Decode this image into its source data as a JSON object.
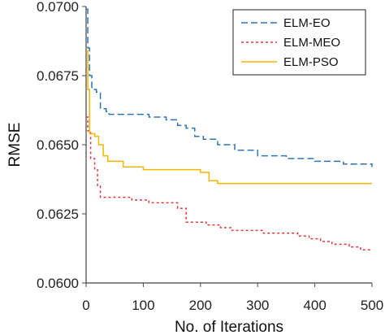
{
  "chart_data": {
    "type": "line",
    "xlabel": "No. of Iterations",
    "ylabel": "RMSE",
    "xlim": [
      0,
      500
    ],
    "ylim": [
      0.06,
      0.07
    ],
    "x_ticks": [
      "0",
      "100",
      "200",
      "300",
      "400",
      "500"
    ],
    "y_ticks": [
      "0.0600",
      "0.0625",
      "0.0650",
      "0.0675",
      "0.0700"
    ],
    "grid": false,
    "legend_position": "top-right",
    "series": [
      {
        "name": "ELM-EO",
        "color": "#2e75b6",
        "dash": "dashed",
        "points": [
          [
            0,
            0.0699
          ],
          [
            3,
            0.0685
          ],
          [
            6,
            0.0675
          ],
          [
            10,
            0.067
          ],
          [
            18,
            0.0669
          ],
          [
            25,
            0.0663
          ],
          [
            35,
            0.0662
          ],
          [
            40,
            0.0661
          ],
          [
            60,
            0.0661
          ],
          [
            100,
            0.0661
          ],
          [
            110,
            0.066
          ],
          [
            140,
            0.0659
          ],
          [
            160,
            0.0657
          ],
          [
            175,
            0.0656
          ],
          [
            190,
            0.0653
          ],
          [
            205,
            0.0652
          ],
          [
            230,
            0.065
          ],
          [
            260,
            0.0648
          ],
          [
            300,
            0.0646
          ],
          [
            350,
            0.0645
          ],
          [
            400,
            0.0644
          ],
          [
            450,
            0.0643
          ],
          [
            500,
            0.0642
          ]
        ]
      },
      {
        "name": "ELM-MEO",
        "color": "#e03a3e",
        "dash": "dotted",
        "points": [
          [
            0,
            0.066
          ],
          [
            3,
            0.0655
          ],
          [
            8,
            0.0645
          ],
          [
            15,
            0.0641
          ],
          [
            20,
            0.0635
          ],
          [
            25,
            0.0631
          ],
          [
            60,
            0.0631
          ],
          [
            80,
            0.063
          ],
          [
            100,
            0.063
          ],
          [
            110,
            0.0629
          ],
          [
            150,
            0.0629
          ],
          [
            160,
            0.0627
          ],
          [
            170,
            0.0627
          ],
          [
            175,
            0.0622
          ],
          [
            200,
            0.0622
          ],
          [
            210,
            0.0621
          ],
          [
            230,
            0.0621
          ],
          [
            235,
            0.062
          ],
          [
            250,
            0.062
          ],
          [
            255,
            0.0619
          ],
          [
            300,
            0.0619
          ],
          [
            310,
            0.0618
          ],
          [
            350,
            0.0618
          ],
          [
            370,
            0.0617
          ],
          [
            390,
            0.0616
          ],
          [
            410,
            0.0615
          ],
          [
            430,
            0.0614
          ],
          [
            460,
            0.0613
          ],
          [
            480,
            0.0612
          ],
          [
            500,
            0.0612
          ]
        ]
      },
      {
        "name": "ELM-PSO",
        "color": "#f2b800",
        "dash": "solid",
        "points": [
          [
            0,
            0.0684
          ],
          [
            3,
            0.067
          ],
          [
            6,
            0.0654
          ],
          [
            15,
            0.0653
          ],
          [
            22,
            0.065
          ],
          [
            30,
            0.0646
          ],
          [
            38,
            0.0644
          ],
          [
            60,
            0.0644
          ],
          [
            65,
            0.0642
          ],
          [
            100,
            0.0641
          ],
          [
            150,
            0.0641
          ],
          [
            200,
            0.064
          ],
          [
            215,
            0.0637
          ],
          [
            230,
            0.0636
          ],
          [
            300,
            0.0636
          ],
          [
            400,
            0.0636
          ],
          [
            500,
            0.0636
          ]
        ]
      }
    ]
  }
}
